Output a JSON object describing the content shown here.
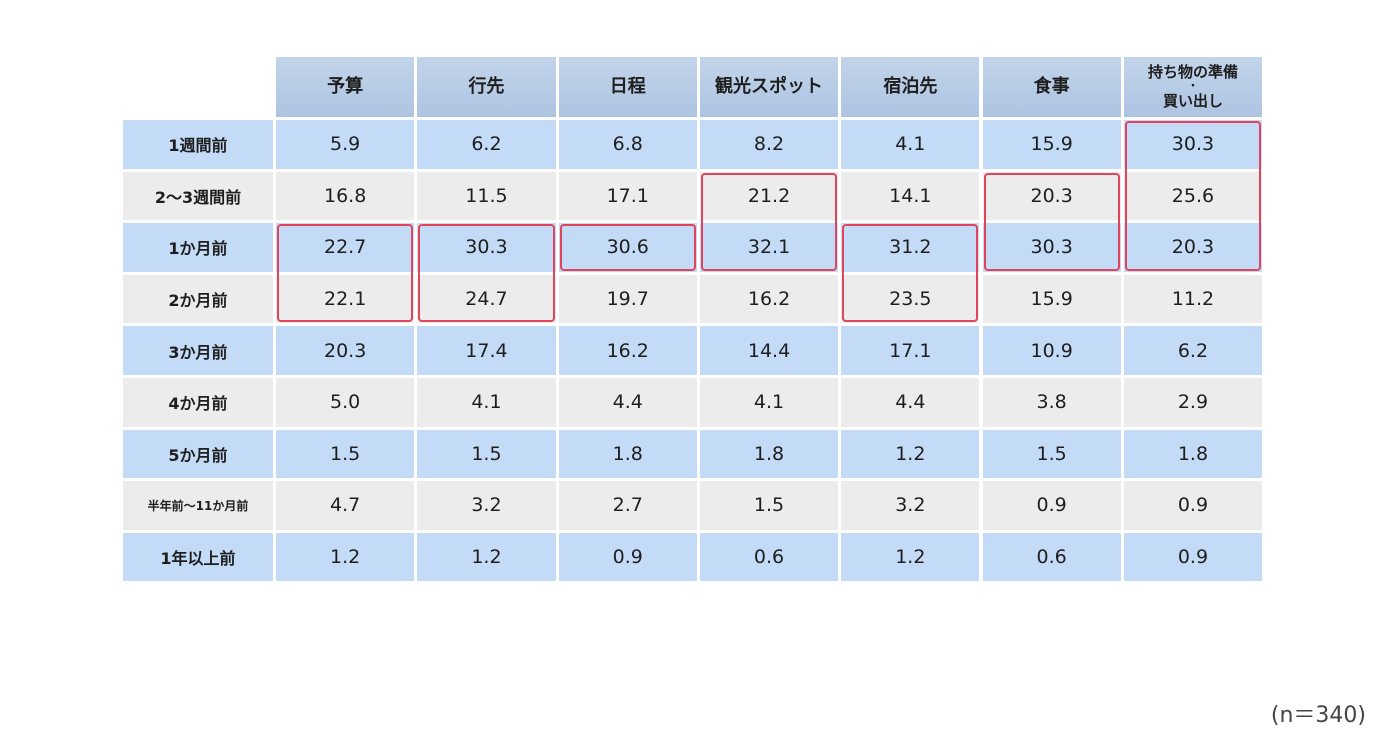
{
  "chart_data": {
    "type": "table",
    "columns": [
      "予算",
      "行先",
      "日程",
      "観光スポット",
      "宿泊先",
      "食事",
      "持ち物の準備・買い出し"
    ],
    "column_labels": [
      [
        "予算"
      ],
      [
        "行先"
      ],
      [
        "日程"
      ],
      [
        "観光スポット"
      ],
      [
        "宿泊先"
      ],
      [
        "食事"
      ],
      [
        "持ち物の準備",
        "・",
        "買い出し"
      ]
    ],
    "rows": [
      "1週間前",
      "2～3週間前",
      "1か月前",
      "2か月前",
      "3か月前",
      "4か月前",
      "5か月前",
      "半年前～11か月前",
      "1年以上前"
    ],
    "values": [
      [
        "5.9",
        "6.2",
        "6.8",
        "8.2",
        "4.1",
        "15.9",
        "30.3"
      ],
      [
        "16.8",
        "11.5",
        "17.1",
        "21.2",
        "14.1",
        "20.3",
        "25.6"
      ],
      [
        "22.7",
        "30.3",
        "30.6",
        "32.1",
        "31.2",
        "30.3",
        "20.3"
      ],
      [
        "22.1",
        "24.7",
        "19.7",
        "16.2",
        "23.5",
        "15.9",
        "11.2"
      ],
      [
        "20.3",
        "17.4",
        "16.2",
        "14.4",
        "17.1",
        "10.9",
        "6.2"
      ],
      [
        "5.0",
        "4.1",
        "4.4",
        "4.1",
        "4.4",
        "3.8",
        "2.9"
      ],
      [
        "1.5",
        "1.5",
        "1.8",
        "1.8",
        "1.2",
        "1.5",
        "1.8"
      ],
      [
        "4.7",
        "3.2",
        "2.7",
        "1.5",
        "3.2",
        "0.9",
        "0.9"
      ],
      [
        "1.2",
        "1.2",
        "0.9",
        "0.6",
        "1.2",
        "0.6",
        "0.9"
      ]
    ],
    "highlights": [
      {
        "column": 0,
        "from_row": 2,
        "to_row": 3
      },
      {
        "column": 1,
        "from_row": 2,
        "to_row": 3
      },
      {
        "column": 2,
        "from_row": 2,
        "to_row": 2
      },
      {
        "column": 3,
        "from_row": 1,
        "to_row": 2
      },
      {
        "column": 4,
        "from_row": 2,
        "to_row": 3
      },
      {
        "column": 5,
        "from_row": 1,
        "to_row": 2
      },
      {
        "column": 6,
        "from_row": 0,
        "to_row": 2
      }
    ],
    "highlight_color": "#e0455e",
    "row_colors": [
      "#c3dbf6",
      "#ececec"
    ],
    "header_color": "#b4c9e4"
  },
  "footnote": "(n＝340)"
}
